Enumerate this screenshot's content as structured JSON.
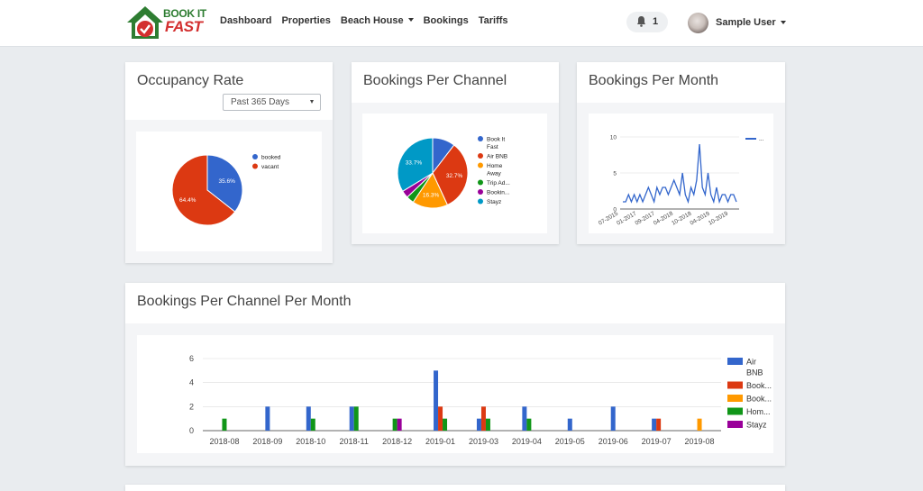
{
  "brand": {
    "line1": "BOOK IT",
    "line2": "FAST"
  },
  "nav": {
    "links": [
      {
        "label": "Dashboard"
      },
      {
        "label": "Properties"
      },
      {
        "label": "Beach House"
      },
      {
        "label": "Bookings"
      },
      {
        "label": "Tariffs"
      }
    ],
    "notifications": {
      "count": "1",
      "icon": "bell-icon"
    },
    "user": {
      "name": "Sample User"
    }
  },
  "occupancy": {
    "title": "Occupancy Rate",
    "filter": {
      "selected": "Past 365 Days"
    }
  },
  "channel": {
    "title": "Bookings Per Channel"
  },
  "month": {
    "title": "Bookings Per Month"
  },
  "channel_month": {
    "title": "Bookings Per Channel Per Month"
  },
  "colors": {
    "blue": "#3366cc",
    "red": "#dc3912",
    "orange": "#ff9900",
    "green": "#109618",
    "purple": "#990099",
    "teal": "#0099c6"
  },
  "chart_data": [
    {
      "type": "pie",
      "labels": [
        "booked",
        "vacant"
      ],
      "values": [
        35.6,
        64.4
      ],
      "slice_labels": [
        "35.6%",
        "64.4%"
      ]
    },
    {
      "type": "pie",
      "labels": [
        "Book It Fast",
        "Air BNB",
        "Home Away",
        "Trip Ad...",
        "Bookin...",
        "Stayz"
      ],
      "legend_lines": [
        [
          "Book It",
          "Fast"
        ],
        [
          "Air BNB"
        ],
        [
          "Home",
          "Away"
        ],
        [
          "Trip Ad..."
        ],
        [
          "Bookin..."
        ],
        [
          "Stayz"
        ]
      ],
      "values": [
        10.4,
        32.7,
        16.3,
        3.5,
        3.4,
        33.7
      ],
      "slice_labels": [
        "",
        "32.7%",
        "16.3%",
        "",
        "",
        "33.7%"
      ]
    },
    {
      "type": "line",
      "x_tick_labels": [
        "07-2015",
        "01-2017",
        "09-2017",
        "04-2018",
        "10-2018",
        "04-2019",
        "10-2019"
      ],
      "y_ticks": [
        0,
        5,
        10
      ],
      "ylim": [
        0,
        10
      ],
      "legend": "...",
      "values": [
        1,
        1,
        2,
        1,
        2,
        1,
        2,
        1,
        2,
        3,
        2,
        1,
        3,
        2,
        3,
        3,
        2,
        3,
        4,
        3,
        2,
        5,
        2,
        1,
        3,
        2,
        4,
        9,
        3,
        2,
        5,
        2,
        1,
        3,
        1,
        2,
        2,
        1,
        2,
        2,
        1
      ]
    },
    {
      "type": "bar",
      "categories": [
        "2018-08",
        "2018-09",
        "2018-10",
        "2018-11",
        "2018-12",
        "2019-01",
        "2019-03",
        "2019-04",
        "2019-05",
        "2019-06",
        "2019-07",
        "2019-08"
      ],
      "y_ticks": [
        0,
        2,
        4,
        6
      ],
      "ylim": [
        0,
        6
      ],
      "legend": [
        "Air BNB",
        "Book...",
        "Book...",
        "Hom...",
        "Stayz"
      ],
      "legend_lines": [
        [
          "Air",
          "BNB"
        ],
        [
          "Book..."
        ],
        [
          "Book..."
        ],
        [
          "Hom..."
        ],
        [
          "Stayz"
        ]
      ],
      "series": [
        {
          "values": [
            0,
            2,
            2,
            2,
            0,
            5,
            1,
            2,
            1,
            2,
            1,
            0
          ]
        },
        {
          "values": [
            0,
            0,
            0,
            0,
            0,
            2,
            2,
            0,
            0,
            0,
            1,
            0
          ]
        },
        {
          "values": [
            0,
            0,
            0,
            0,
            0,
            0,
            0,
            0,
            0,
            0,
            0,
            1
          ]
        },
        {
          "values": [
            1,
            0,
            1,
            2,
            1,
            1,
            1,
            1,
            0,
            0,
            0,
            0
          ]
        },
        {
          "values": [
            0,
            0,
            0,
            0,
            1,
            0,
            0,
            0,
            0,
            0,
            0,
            0
          ]
        }
      ]
    }
  ]
}
